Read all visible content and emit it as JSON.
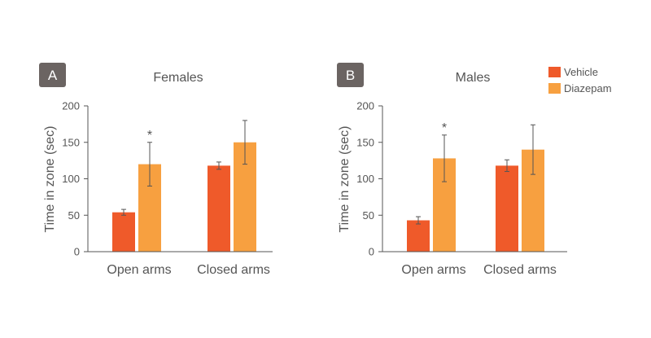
{
  "legend": {
    "items": [
      {
        "label": "Vehicle",
        "color": "#ef5a2a"
      },
      {
        "label": "Diazepam",
        "color": "#f7a040"
      }
    ]
  },
  "chart_data": [
    {
      "type": "bar",
      "panel_label": "A",
      "title": "Females",
      "ylabel": "Time in zone (sec)",
      "xlabel": "",
      "ylim": [
        0,
        200
      ],
      "yticks": [
        0,
        50,
        100,
        150,
        200
      ],
      "categories": [
        "Open arms",
        "Closed arms"
      ],
      "series": [
        {
          "name": "Vehicle",
          "color": "#ef5a2a",
          "values": [
            54,
            118
          ],
          "errors": [
            4,
            5
          ]
        },
        {
          "name": "Diazepam",
          "color": "#f7a040",
          "values": [
            120,
            150
          ],
          "errors": [
            30,
            30
          ]
        }
      ],
      "annotations": [
        {
          "category_index": 0,
          "series_index": 1,
          "text": "*"
        }
      ]
    },
    {
      "type": "bar",
      "panel_label": "B",
      "title": "Males",
      "ylabel": "Time in zone (sec)",
      "xlabel": "",
      "ylim": [
        0,
        200
      ],
      "yticks": [
        0,
        50,
        100,
        150,
        200
      ],
      "categories": [
        "Open arms",
        "Closed arms"
      ],
      "series": [
        {
          "name": "Vehicle",
          "color": "#ef5a2a",
          "values": [
            43,
            118
          ],
          "errors": [
            5,
            8
          ]
        },
        {
          "name": "Diazepam",
          "color": "#f7a040",
          "values": [
            128,
            140
          ],
          "errors": [
            32,
            34
          ]
        }
      ],
      "annotations": [
        {
          "category_index": 0,
          "series_index": 1,
          "text": "*"
        }
      ]
    }
  ]
}
